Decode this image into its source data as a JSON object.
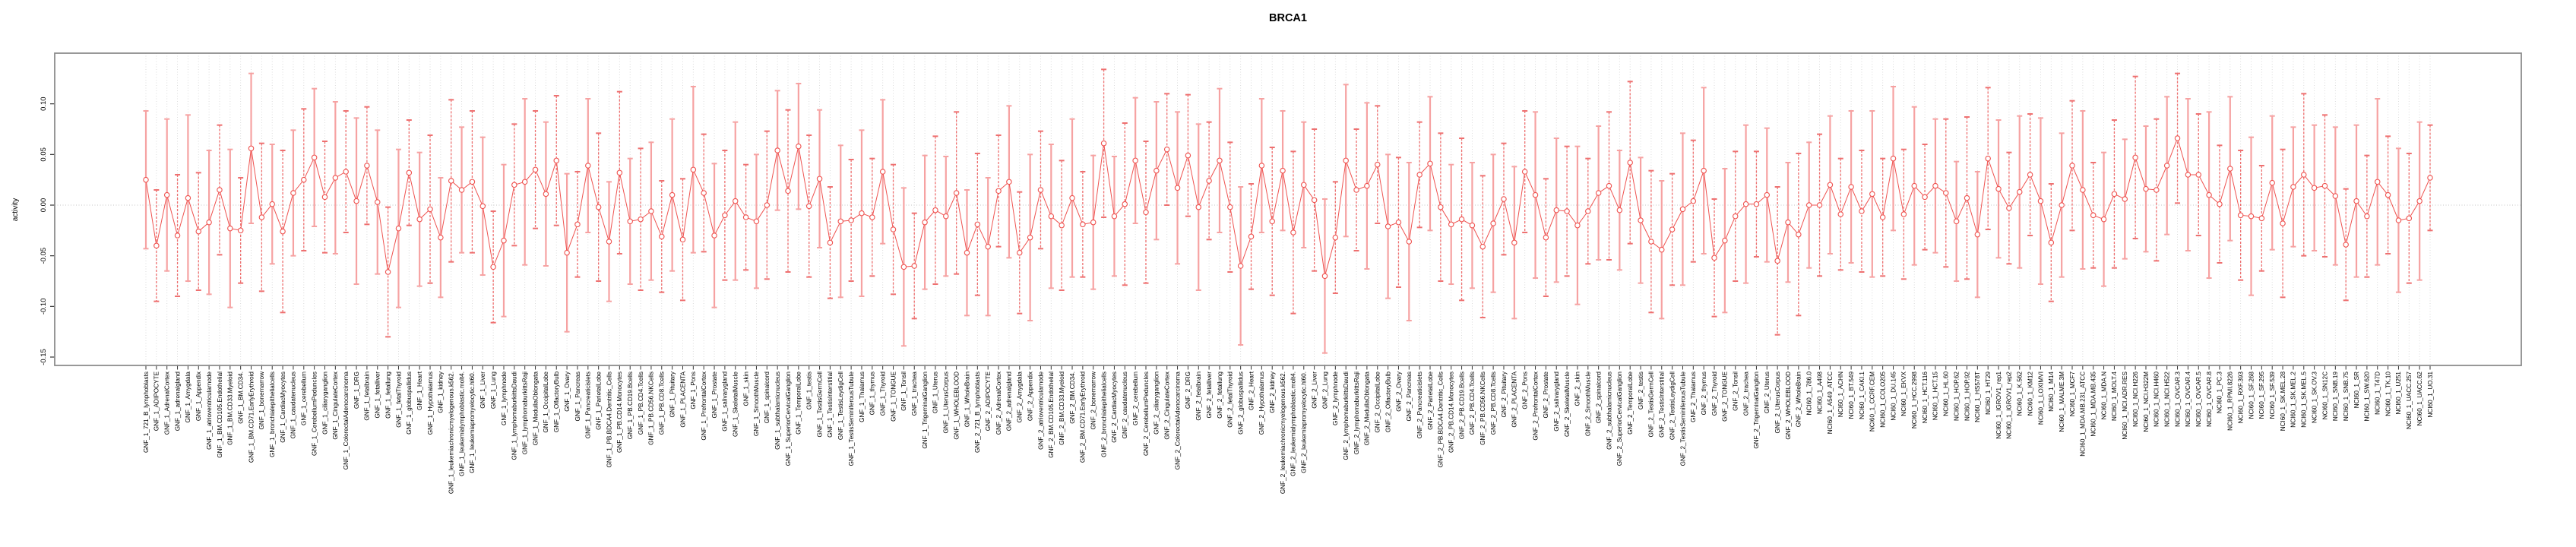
{
  "page": {
    "background": "#ffffff"
  },
  "chart_data": {
    "type": "line",
    "title": "BRCA1",
    "ylabel": "activity",
    "xlabel": "",
    "legend_position": "none",
    "grid": "vertical dotted line per category; horizontal dotted line at 0",
    "ylim": [
      -0.158,
      0.15
    ],
    "yticks": [
      0.1,
      0.05,
      0.0,
      -0.05,
      -0.1,
      -0.15
    ],
    "point_color": "#ef5350",
    "line_color": "#ef5350",
    "errorbar_solid_color": "#f6a2a2",
    "errorbar_dashed_color": "#ee7070",
    "gridline_color": "#d8d8d8",
    "frame_color": "#8c8c8c",
    "categories": [
      "GNF_1_721_B_lymphoblasts",
      "GNF_1_ADIPOCYTE",
      "GNF_1_AdrenalCortex",
      "GNF_1_adrenalgland",
      "GNF_1_Amygdala",
      "GNF_1_Appendix",
      "GNF_1_atrioventricularnode",
      "GNF_1_BM.CD105.Endothelial",
      "GNF_1_BM.CD33.Myeloid",
      "GNF_1_BM.CD34.",
      "GNF_1_BM.CD71.EarlyErythroid",
      "GNF_1_bonemarrow",
      "GNF_1_bronchialepithelialcells",
      "GNF_1_CardiacMyocytes",
      "GNF_1_caudatenucleus",
      "GNF_1_cerebellum",
      "GNF_1_CerebellumPeduncles",
      "GNF_1_ciliaryganglion",
      "GNF_1_CingulateCortex",
      "GNF_1_ColorectalAdenocarcinoma",
      "GNF_1_DRG",
      "GNF_1_fetalbrain",
      "GNF_1_fetalliver",
      "GNF_1_fetallung",
      "GNF_1_fetalThyroid",
      "GNF_1_globuspallidus",
      "GNF_1_Heart",
      "GNF_1_Hypothalamus",
      "GNF_1_kidney",
      "GNF_1_leukemiachronicmyelogenous.k562.",
      "GNF_1_leukemialymphoblastic.molt4.",
      "GNF_1_leukemiapromyelocytic.hl60.",
      "GNF_1_Liver",
      "GNF_1_Lung",
      "GNF_1_lymphnode",
      "GNF_1_lymphomaburkittsDaudi",
      "GNF_1_lymphomaburkittsRaji",
      "GNF_1_MedullaOblongata",
      "GNF_1_OccipitalLobe",
      "GNF_1_OlfactoryBulb",
      "GNF_1_Ovary",
      "GNF_1_Pancreas",
      "GNF_1_Pancreaticislets",
      "GNF_1_ParietalLobe",
      "GNF_1_PB.BDCA4.Dentritic_Cells",
      "GNF_1_PB.CD14.Monocytes",
      "GNF_1_PB.CD19.Bcells",
      "GNF_1_PB.CD4.Tcells",
      "GNF_1_PB.CD56.NKCells",
      "GNF_1_PB.CD8.Tcells",
      "GNF_1_Pituitary",
      "GNF_1_PLACENTA",
      "GNF_1_Pons",
      "GNF_1_PrefrontalCortex",
      "GNF_1_Prostate",
      "GNF_1_salivarygland",
      "GNF_1_SkeletalMuscle",
      "GNF_1_skin",
      "GNF_1_SmoothMuscle",
      "GNF_1_spinalcord",
      "GNF_1_subthalamicnucleus",
      "GNF_1_SuperiorCervicalGanglion",
      "GNF_1_TemporalLobe",
      "GNF_1_testis",
      "GNF_1_TestisGermCell",
      "GNF_1_TestisInterstitial",
      "GNF_1_TestisLeydigCell",
      "GNF_1_TestisSeminiferousTubule",
      "GNF_1_Thalamus",
      "GNF_1_thymus",
      "GNF_1_Thyroid",
      "GNF_1_TONGUE",
      "GNF_1_Tonsil",
      "GNF_1_trachea",
      "GNF_1_TrigeminalGanglion",
      "GNF_1_Uterus",
      "GNF_1_UterusCorpus",
      "GNF_1_WHOLEBLOOD",
      "GNF_1_WholeBrain",
      "GNF_2_721_B_lymphoblasts",
      "GNF_2_ADIPOCYTE",
      "GNF_2_AdrenalCortex",
      "GNF_2_adrenalgland",
      "GNF_2_Amygdala",
      "GNF_2_Appendix",
      "GNF_2_atrioventricularnode",
      "GNF_2_BM.CD105.Endothelial",
      "GNF_2_BM.CD33.Myeloid",
      "GNF_2_BM.CD34.",
      "GNF_2_BM.CD71.EarlyErythroid",
      "GNF_2_bonemarrow",
      "GNF_2_bronchialepithelialcells",
      "GNF_2_CardiacMyocytes",
      "GNF_2_caudatenucleus",
      "GNF_2_cerebellum",
      "GNF_2_CerebellumPeduncles",
      "GNF_2_ciliaryganglion",
      "GNF_2_CingulateCortex",
      "GNF_2_ColorectalAdenocarcinoma",
      "GNF_2_DRG",
      "GNF_2_fetalbrain",
      "GNF_2_fetalliver",
      "GNF_2_fetallung",
      "GNF_2_fetalThyroid",
      "GNF_2_globuspallidus",
      "GNF_2_Heart",
      "GNF_2_Hypothalamus",
      "GNF_2_kidney",
      "GNF_2_leukemiachronicmyelogenous.k562.",
      "GNF_2_leukemialymphoblastic.molt4.",
      "GNF_2_leukemiapromyelocytic.hl60.",
      "GNF_2_Liver",
      "GNF_2_Lung",
      "GNF_2_lymphnode",
      "GNF_2_lymphomaburkittsDaudi",
      "GNF_2_lymphomaburkittsRaji",
      "GNF_2_MedullaOblongata",
      "GNF_2_OccipitalLobe",
      "GNF_2_OlfactoryBulb",
      "GNF_2_Ovary",
      "GNF_2_Pancreas",
      "GNF_2_Pancreaticislets",
      "GNF_2_ParietalLobe",
      "GNF_2_PB.BDCA4.Dentritic_Cells",
      "GNF_2_PB.CD14.Monocytes",
      "GNF_2_PB.CD19.Bcells",
      "GNF_2_PB.CD4.Tcells",
      "GNF_2_PB.CD56.NKCells",
      "GNF_2_PB.CD8.Tcells",
      "GNF_2_Pituitary",
      "GNF_2_PLACENTA",
      "GNF_2_Pons",
      "GNF_2_PrefrontalCortex",
      "GNF_2_Prostate",
      "GNF_2_salivarygland",
      "GNF_2_SkeletalMuscle",
      "GNF_2_skin",
      "GNF_2_SmoothMuscle",
      "GNF_2_spinalcord",
      "GNF_2_subthalamicnucleus",
      "GNF_2_SuperiorCervicalGanglion",
      "GNF_2_TemporalLobe",
      "GNF_2_testis",
      "GNF_2_TestisGermCell",
      "GNF_2_TestisInterstitial",
      "GNF_2_TestisLeydigCell",
      "GNF_2_TestisSeminiferousTubule",
      "GNF_2_Thalamus",
      "GNF_2_thymus",
      "GNF_2_Thyroid",
      "GNF_2_TONGUE",
      "GNF_2_Tonsil",
      "GNF_2_trachea",
      "GNF_2_TrigeminalGanglion",
      "GNF_2_Uterus",
      "GNF_2_UterusCorpus",
      "GNF_2_WHOLEBLOOD",
      "GNF_2_WholeBrain",
      "NCI60_1_786.0",
      "NCI60_1_A498",
      "NCI60_1_A549_ATCC",
      "NCI60_1_ACHN",
      "NCI60_1_BT.549",
      "NCI60_1_CAKI.1",
      "NCI60_1_CCRF.CEM",
      "NCI60_1_COLO205",
      "NCI60_1_DU.145",
      "NCI60_1_EKVX",
      "NCI60_1_HCC.2998",
      "NCI60_1_HCT.116",
      "NCI60_1_HCT.15",
      "NCI60_1_HL.60",
      "NCI60_1_HOP.62",
      "NCI60_1_HOP.92",
      "NCI60_1_HS578T",
      "NCI60_1_HT29",
      "NCI60_1_IGROV1_rep1",
      "NCI60_1_IGROV1_rep2",
      "NCI60_1_K.562",
      "NCI60_1_KM12",
      "NCI60_1_LOXIMVI",
      "NCI60_1_M14",
      "NCI60_1_MALME.3M",
      "NCI60_1_MCF7",
      "NCI60_1_MDA.MB.231_ATCC",
      "NCI60_1_MDA.MB.435",
      "NCI60_1_MDA.N",
      "NCI60_1_MOLT.4",
      "NCI60_1_NCI.ADR.RES",
      "NCI60_1_NCI.H226",
      "NCI60_1_NCI.H322M",
      "NCI60_1_NCI.H460",
      "NCI60_1_NCI.H522",
      "NCI60_1_OVCAR.3",
      "NCI60_1_OVCAR.4",
      "NCI60_1_OVCAR.5",
      "NCI60_1_OVCAR.8",
      "NCI60_1_PC.3",
      "NCI60_1_RPMI.8226",
      "NCI60_1_RXF.393",
      "NCI60_1_SF.268",
      "NCI60_1_SF.295",
      "NCI60_1_SF.539",
      "NCI60_1_SK.MEL.28",
      "NCI60_1_SK.MEL.2",
      "NCI60_1_SK.MEL.5",
      "NCI60_1_SK.OV.3",
      "NCI60_1_SN12C",
      "NCI60_1_SNB.19",
      "NCI60_1_SNB.75",
      "NCI60_1_SR",
      "NCI60_1_SW.620",
      "NCI60_1_T47D",
      "NCI60_1_TK.10",
      "NCI60_1_U251",
      "NCI60_1_UACC.257",
      "NCI60_1_UACC.62",
      "NCI60_1_UO.31"
    ],
    "series": [
      {
        "name": "activity",
        "values": [
          0.025,
          -0.04,
          0.01,
          -0.03,
          0.007,
          -0.026,
          -0.017,
          0.015,
          -0.023,
          -0.025,
          0.056,
          -0.012,
          0.001,
          -0.026,
          0.012,
          0.025,
          0.047,
          0.008,
          0.027,
          0.033,
          0.004,
          0.039,
          0.003,
          -0.066,
          -0.023,
          0.032,
          -0.014,
          -0.004,
          -0.032,
          0.024,
          0.015,
          0.023,
          -0.001,
          -0.061,
          -0.035,
          0.02,
          0.023,
          0.035,
          0.011,
          0.044,
          -0.047,
          -0.019,
          0.039,
          -0.002,
          -0.036,
          0.032,
          -0.016,
          -0.014,
          -0.006,
          -0.031,
          0.01,
          -0.034,
          0.035,
          0.012,
          -0.03,
          -0.01,
          0.004,
          -0.012,
          -0.016,
          0.0,
          0.054,
          0.014,
          0.058,
          -0.001,
          0.026,
          -0.037,
          -0.016,
          -0.015,
          -0.008,
          -0.012,
          0.033,
          -0.024,
          -0.061,
          -0.06,
          -0.017,
          -0.005,
          -0.011,
          0.012,
          -0.047,
          -0.019,
          -0.041,
          0.014,
          0.023,
          -0.047,
          -0.032,
          0.015,
          -0.011,
          -0.02,
          0.007,
          -0.019,
          -0.017,
          0.061,
          -0.011,
          0.001,
          0.044,
          -0.007,
          0.034,
          0.055,
          0.017,
          0.049,
          -0.002,
          0.024,
          0.044,
          -0.002,
          -0.06,
          -0.031,
          0.039,
          -0.016,
          0.034,
          -0.027,
          0.02,
          0.005,
          -0.07,
          -0.032,
          0.044,
          0.015,
          0.019,
          0.04,
          -0.021,
          -0.017,
          -0.036,
          0.03,
          0.041,
          -0.002,
          -0.019,
          -0.014,
          -0.02,
          -0.041,
          -0.018,
          0.006,
          -0.037,
          0.033,
          0.01,
          -0.032,
          -0.005,
          -0.006,
          -0.02,
          -0.006,
          0.012,
          0.019,
          -0.005,
          0.042,
          -0.015,
          -0.036,
          -0.044,
          -0.024,
          -0.004,
          0.004,
          0.034,
          -0.052,
          -0.035,
          -0.011,
          0.001,
          0.001,
          0.01,
          -0.055,
          -0.017,
          -0.029,
          0.0,
          0.0,
          0.02,
          -0.009,
          0.018,
          -0.006,
          0.011,
          -0.012,
          0.046,
          -0.009,
          0.019,
          0.008,
          0.019,
          0.012,
          -0.016,
          0.007,
          -0.029,
          0.046,
          0.016,
          -0.003,
          0.013,
          0.03,
          0.004,
          -0.037,
          0.0,
          0.039,
          0.015,
          -0.01,
          -0.014,
          0.011,
          0.006,
          0.047,
          0.016,
          0.015,
          0.039,
          0.066,
          0.03,
          0.03,
          0.01,
          0.001,
          0.036,
          -0.01,
          -0.011,
          -0.013,
          0.022,
          -0.018,
          0.018,
          0.03,
          0.017,
          0.019,
          0.009,
          -0.039,
          0.004,
          -0.011,
          0.023,
          0.01,
          -0.015,
          -0.013,
          0.004,
          0.027
        ],
        "err": [
          0.068,
          0.055,
          0.075,
          0.06,
          0.082,
          0.058,
          0.071,
          0.064,
          0.078,
          0.052,
          0.074,
          0.073,
          0.059,
          0.08,
          0.062,
          0.07,
          0.068,
          0.055,
          0.075,
          0.06,
          0.082,
          0.058,
          0.071,
          0.064,
          0.078,
          0.052,
          0.066,
          0.073,
          0.059,
          0.08,
          0.062,
          0.07,
          0.068,
          0.055,
          0.075,
          0.06,
          0.082,
          0.058,
          0.071,
          0.064,
          0.078,
          0.052,
          0.066,
          0.073,
          0.059,
          0.08,
          0.062,
          0.07,
          0.068,
          0.055,
          0.075,
          0.06,
          0.082,
          0.058,
          0.071,
          0.064,
          0.078,
          0.052,
          0.066,
          0.073,
          0.059,
          0.08,
          0.062,
          0.07,
          0.068,
          0.055,
          0.075,
          0.06,
          0.082,
          0.058,
          0.071,
          0.064,
          0.078,
          0.052,
          0.066,
          0.073,
          0.059,
          0.08,
          0.062,
          0.07,
          0.068,
          0.055,
          0.075,
          0.06,
          0.082,
          0.058,
          0.071,
          0.064,
          0.078,
          0.052,
          0.066,
          0.073,
          0.059,
          0.08,
          0.062,
          0.07,
          0.068,
          0.055,
          0.075,
          0.06,
          0.082,
          0.058,
          0.071,
          0.064,
          0.078,
          0.052,
          0.066,
          0.073,
          0.059,
          0.08,
          0.062,
          0.07,
          0.076,
          0.055,
          0.075,
          0.06,
          0.082,
          0.058,
          0.071,
          0.064,
          0.078,
          0.052,
          0.066,
          0.073,
          0.059,
          0.08,
          0.062,
          0.07,
          0.068,
          0.055,
          0.075,
          0.06,
          0.082,
          0.058,
          0.071,
          0.064,
          0.078,
          0.052,
          0.066,
          0.073,
          0.059,
          0.08,
          0.062,
          0.07,
          0.068,
          0.055,
          0.075,
          0.06,
          0.082,
          0.058,
          0.071,
          0.064,
          0.078,
          0.052,
          0.066,
          0.073,
          0.059,
          0.08,
          0.062,
          0.07,
          0.068,
          0.055,
          0.075,
          0.06,
          0.082,
          0.058,
          0.071,
          0.064,
          0.078,
          0.052,
          0.066,
          0.073,
          0.059,
          0.08,
          0.062,
          0.07,
          0.068,
          0.055,
          0.075,
          0.06,
          0.082,
          0.058,
          0.071,
          0.064,
          0.078,
          0.052,
          0.066,
          0.073,
          0.059,
          0.08,
          0.062,
          0.07,
          0.068,
          0.064,
          0.075,
          0.06,
          0.082,
          0.058,
          0.071,
          0.064,
          0.078,
          0.052,
          0.066,
          0.073,
          0.059,
          0.08,
          0.062,
          0.07,
          0.068,
          0.055,
          0.075,
          0.06,
          0.082,
          0.058,
          0.071,
          0.064,
          0.078,
          0.052
        ]
      }
    ]
  }
}
